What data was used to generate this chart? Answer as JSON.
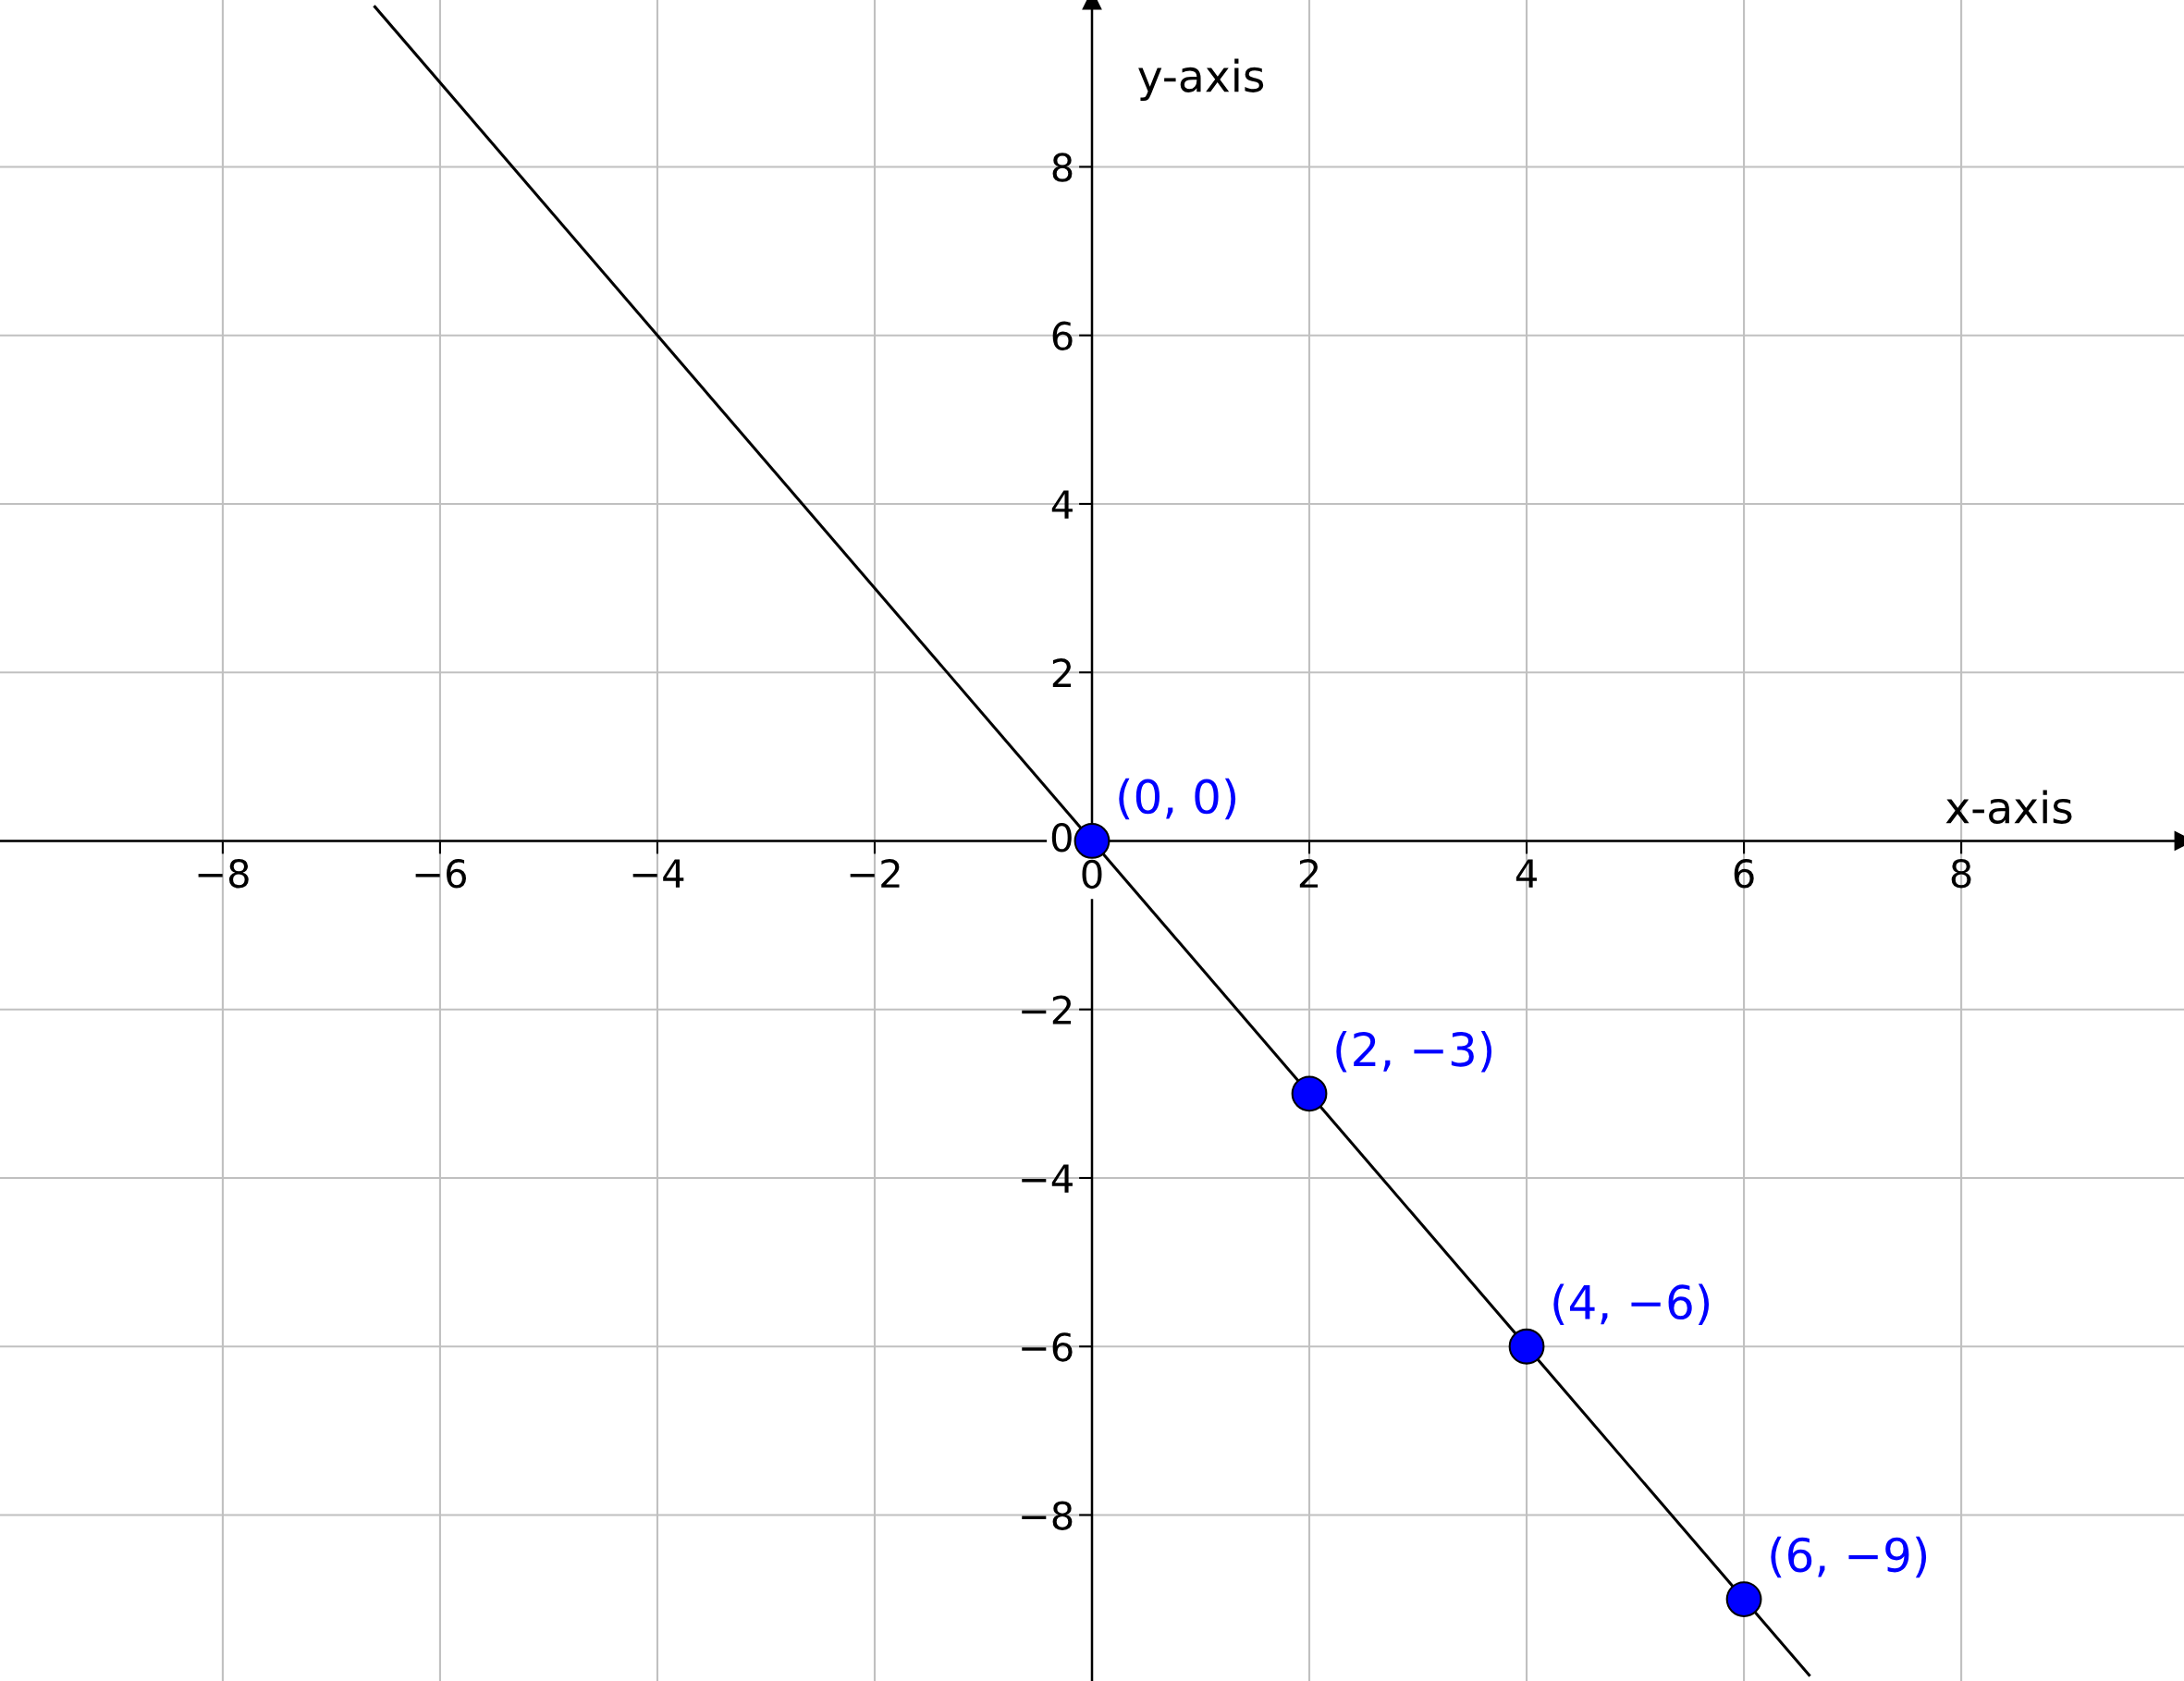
{
  "chart_data": {
    "type": "scatter",
    "xlabel": "x-axis",
    "ylabel": "y-axis",
    "xlim": [
      -10.05,
      10.05
    ],
    "ylim": [
      -9.97,
      9.98
    ],
    "xticks": [
      {
        "value": -8,
        "label": "−8"
      },
      {
        "value": -6,
        "label": "−6"
      },
      {
        "value": -4,
        "label": "−4"
      },
      {
        "value": -2,
        "label": "−2"
      },
      0,
      2,
      4,
      6,
      8
    ],
    "yticks": [
      {
        "value": -8,
        "label": "−8"
      },
      {
        "value": -6,
        "label": "−6"
      },
      {
        "value": -4,
        "label": "−4"
      },
      {
        "value": -2,
        "label": "−2"
      },
      0,
      2,
      4,
      6,
      8
    ],
    "grid": true,
    "legend": false,
    "series": [
      {
        "type": "line",
        "color": "#000000",
        "x": [
          -6.6,
          6.6
        ],
        "values": [
          9.9,
          -9.9
        ],
        "marker": "none",
        "line_style": "solid"
      },
      {
        "color": "#0000ff",
        "x": [
          0,
          2,
          4,
          6
        ],
        "values": [
          0,
          -3,
          -6,
          -9
        ],
        "marker": "circle"
      }
    ],
    "annotations": [
      {
        "text": "(0, 0)",
        "x": 0,
        "y": 0
      },
      {
        "text": "(2, −3)",
        "x": 2,
        "y": -3
      },
      {
        "text": "(4, −6)",
        "x": 4,
        "y": -6
      },
      {
        "text": "(6, −9)",
        "x": 6,
        "y": -9
      }
    ]
  }
}
